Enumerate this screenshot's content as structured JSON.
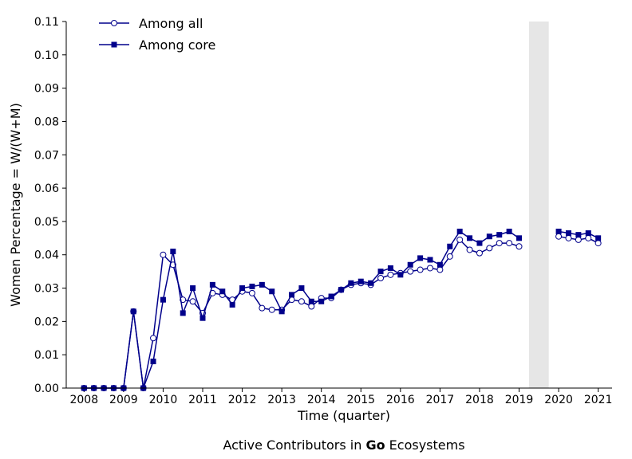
{
  "chart_data": {
    "type": "line",
    "caption": {
      "before": "Active Contributors in ",
      "bold": "Go",
      "after": " Ecosystems"
    },
    "xlabel": "Time (quarter)",
    "ylabel": "Women Percentage = W/(W+M)",
    "xlim": [
      2007.55,
      2021.35
    ],
    "ylim": [
      0,
      0.11
    ],
    "x_ticks": [
      2008,
      2009,
      2010,
      2011,
      2012,
      2013,
      2014,
      2015,
      2016,
      2017,
      2018,
      2019,
      2020,
      2021
    ],
    "x_tick_labels": [
      "2008",
      "2009",
      "2010",
      "2011",
      "2012",
      "2013",
      "2014",
      "2015",
      "2016",
      "2017",
      "2018",
      "2019",
      "2020",
      "2021"
    ],
    "y_ticks": [
      0,
      0.01,
      0.02,
      0.03,
      0.04,
      0.05,
      0.06,
      0.07,
      0.08,
      0.09,
      0.1,
      0.11
    ],
    "y_tick_labels": [
      "0.00",
      "0.01",
      "0.02",
      "0.03",
      "0.04",
      "0.05",
      "0.06",
      "0.07",
      "0.08",
      "0.09",
      "0.10",
      "0.11"
    ],
    "grid": false,
    "legend_position": "top-left",
    "shaded_region": {
      "x": [
        2019.25,
        2019.75
      ],
      "color": "#e6e6e6"
    },
    "line_color": "#00008b",
    "series": [
      {
        "name": "Among all",
        "marker": "open-circle",
        "x": [
          2008,
          2008.25,
          2008.5,
          2008.75,
          2009,
          2009.25,
          2009.5,
          2009.75,
          2010,
          2010.25,
          2010.5,
          2010.75,
          2011,
          2011.25,
          2011.5,
          2011.75,
          2012,
          2012.25,
          2012.5,
          2012.75,
          2013,
          2013.25,
          2013.5,
          2013.75,
          2014,
          2014.25,
          2014.5,
          2014.75,
          2015,
          2015.25,
          2015.5,
          2015.75,
          2016,
          2016.25,
          2016.5,
          2016.75,
          2017,
          2017.25,
          2017.5,
          2017.75,
          2018,
          2018.25,
          2018.5,
          2018.75,
          2019,
          null,
          2020,
          2020.25,
          2020.5,
          2020.75,
          2021
        ],
        "y": [
          0,
          0,
          0,
          0,
          0,
          0.023,
          0,
          0.015,
          0.04,
          0.037,
          0.0265,
          0.026,
          0.0225,
          0.0285,
          0.028,
          0.0265,
          0.029,
          0.0285,
          0.024,
          0.0235,
          0.0235,
          0.0265,
          0.026,
          0.0245,
          0.027,
          0.027,
          0.0295,
          0.031,
          0.0315,
          0.031,
          0.033,
          0.034,
          0.0345,
          0.035,
          0.0355,
          0.036,
          0.0355,
          0.0395,
          0.0445,
          0.0415,
          0.0405,
          0.042,
          0.0435,
          0.0435,
          0.0425,
          null,
          0.0455,
          0.045,
          0.0445,
          0.045,
          0.0435
        ]
      },
      {
        "name": "Among core",
        "marker": "filled-square",
        "x": [
          2008,
          2008.25,
          2008.5,
          2008.75,
          2009,
          2009.25,
          2009.5,
          2009.75,
          2010,
          2010.25,
          2010.5,
          2010.75,
          2011,
          2011.25,
          2011.5,
          2011.75,
          2012,
          2012.25,
          2012.5,
          2012.75,
          2013,
          2013.25,
          2013.5,
          2013.75,
          2014,
          2014.25,
          2014.5,
          2014.75,
          2015,
          2015.25,
          2015.5,
          2015.75,
          2016,
          2016.25,
          2016.5,
          2016.75,
          2017,
          2017.25,
          2017.5,
          2017.75,
          2018,
          2018.25,
          2018.5,
          2018.75,
          2019,
          null,
          2020,
          2020.25,
          2020.5,
          2020.75,
          2021
        ],
        "y": [
          0,
          0,
          0,
          0,
          0,
          0.023,
          0,
          0.008,
          0.0265,
          0.041,
          0.0225,
          0.03,
          0.021,
          0.031,
          0.029,
          0.025,
          0.03,
          0.0305,
          0.031,
          0.029,
          0.023,
          0.028,
          0.03,
          0.026,
          0.026,
          0.0275,
          0.0295,
          0.0315,
          0.032,
          0.0315,
          0.035,
          0.036,
          0.034,
          0.037,
          0.039,
          0.0385,
          0.037,
          0.0425,
          0.047,
          0.045,
          0.0435,
          0.0455,
          0.046,
          0.047,
          0.045,
          null,
          0.047,
          0.0465,
          0.046,
          0.0465,
          0.045
        ]
      }
    ]
  }
}
